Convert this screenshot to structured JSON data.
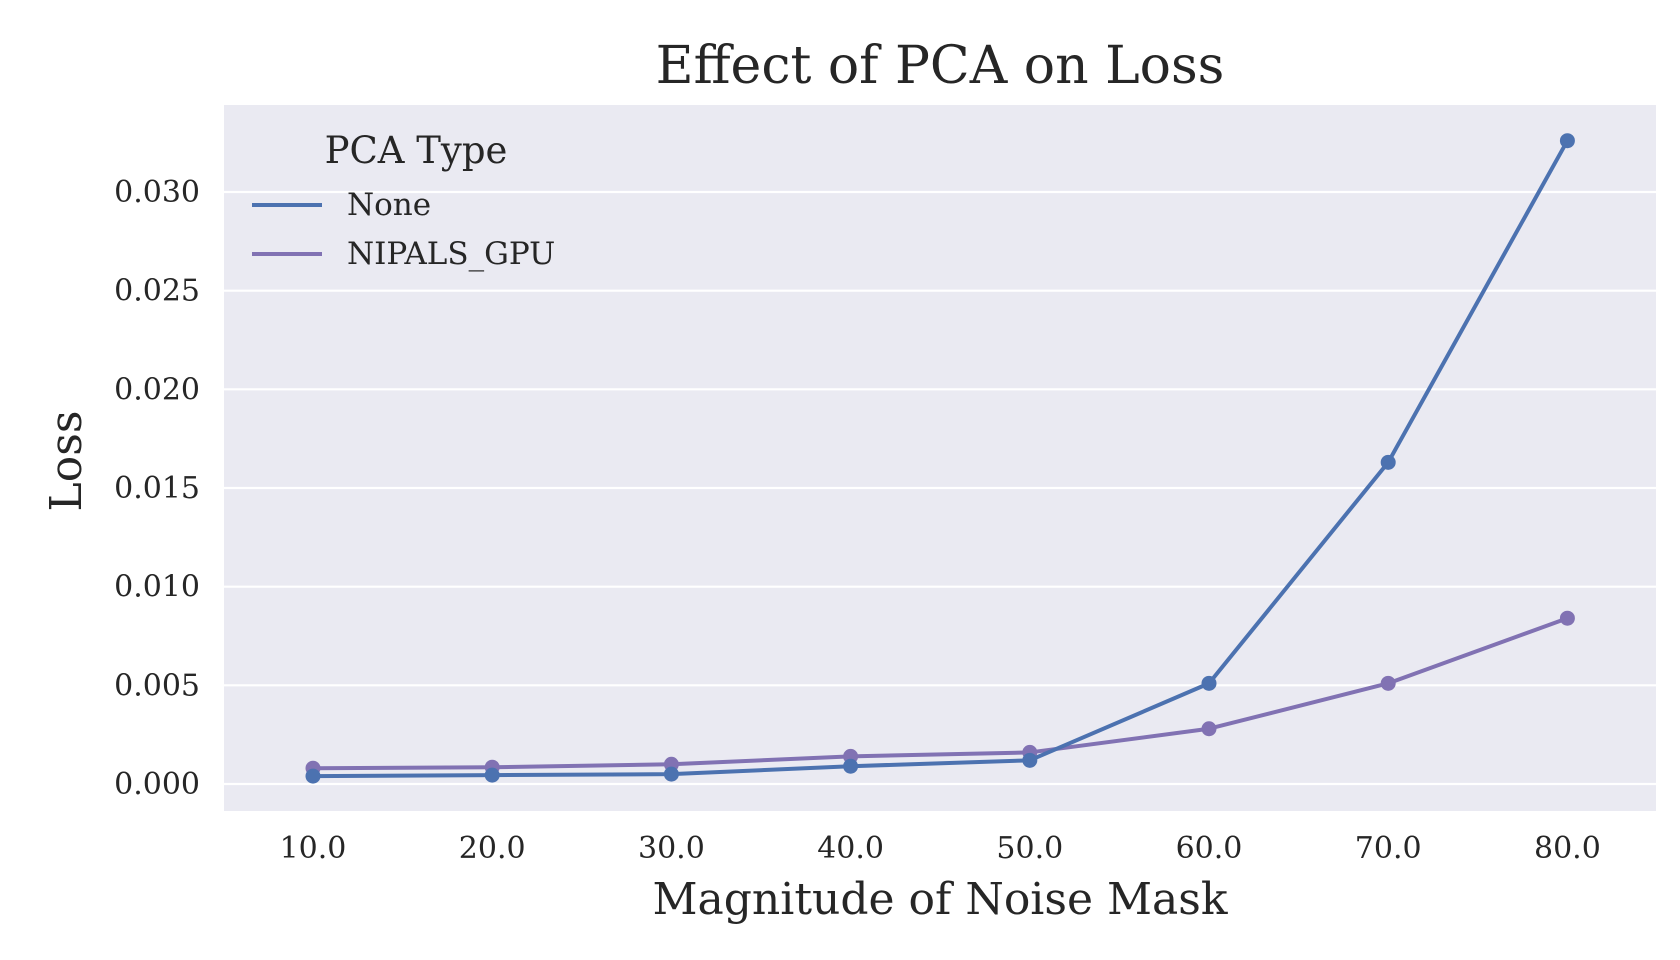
{
  "chart_data": {
    "type": "line",
    "title": "Effect of PCA on Loss",
    "xlabel": "Magnitude of Noise Mask",
    "ylabel": "Loss",
    "x": [
      10.0,
      20.0,
      30.0,
      40.0,
      50.0,
      60.0,
      70.0,
      80.0
    ],
    "x_tick_labels": [
      "10.0",
      "20.0",
      "30.0",
      "40.0",
      "50.0",
      "60.0",
      "70.0",
      "80.0"
    ],
    "y_ticks": [
      0.0,
      0.005,
      0.01,
      0.015,
      0.02,
      0.025,
      0.03
    ],
    "y_tick_labels": [
      "0.000",
      "0.005",
      "0.010",
      "0.015",
      "0.020",
      "0.025",
      "0.030"
    ],
    "ylim": [
      -0.0013,
      0.0343
    ],
    "grid": true,
    "legend": {
      "title": "PCA Type",
      "placement": "top-left"
    },
    "series": [
      {
        "name": "None",
        "color": "#4c72b0",
        "values": [
          0.0004,
          0.00045,
          0.0005,
          0.0009,
          0.0012,
          0.0051,
          0.0163,
          0.0326
        ]
      },
      {
        "name": "NIPALS_GPU",
        "color": "#8172b3",
        "values": [
          0.0008,
          0.00085,
          0.001,
          0.0014,
          0.0016,
          0.0028,
          0.0051,
          0.0084
        ]
      }
    ]
  }
}
